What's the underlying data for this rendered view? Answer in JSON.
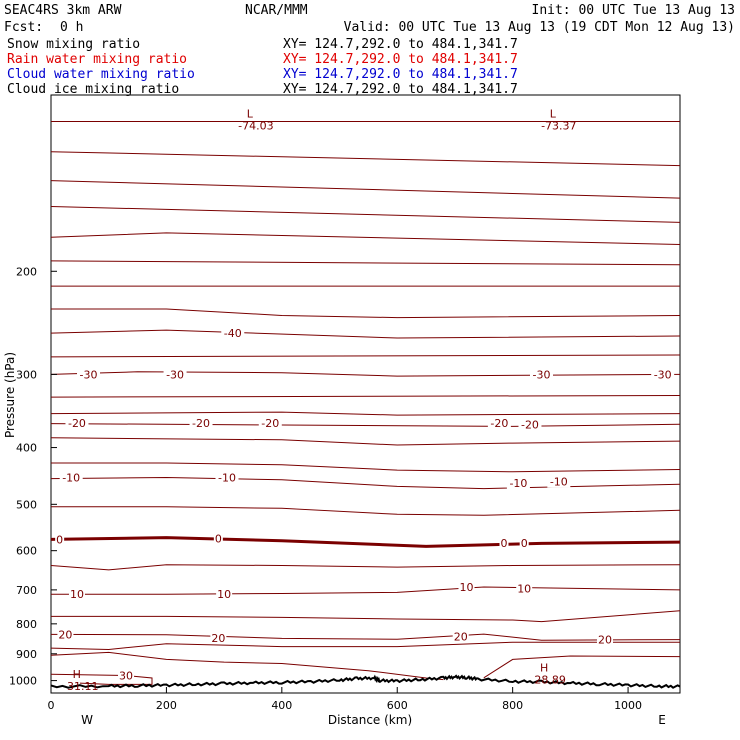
{
  "header": {
    "model": "SEAC4RS  3km ARW",
    "center": "NCAR/MMM",
    "init": "Init: 00 UTC Tue 13 Aug 13",
    "fcst_label": "Fcst:",
    "fcst_value": "0 h",
    "valid": "Valid: 00 UTC Tue 13 Aug 13 (19 CDT Mon 12 Aug 13)",
    "fields": [
      {
        "name": "Snow mixing ratio",
        "xy": "XY= 124.7,292.0 to 484.1,341.7",
        "color": "#000000"
      },
      {
        "name": "Rain water mixing ratio",
        "xy": "XY= 124.7,292.0 to 484.1,341.7",
        "color": "#e00000"
      },
      {
        "name": "Cloud water mixing ratio",
        "xy": "XY= 124.7,292.0 to 484.1,341.7",
        "color": "#0000d0"
      },
      {
        "name": "Cloud ice mixing ratio",
        "xy": "XY= 124.7,292.0 to 484.1,341.7",
        "color": "#000000"
      }
    ]
  },
  "chart_data": {
    "type": "line",
    "xlabel": "Distance (km)",
    "ylabel": "Pressure (hPa)",
    "xlim": [
      0,
      1090
    ],
    "ylim": [
      1050,
      100
    ],
    "y_scale": "log",
    "x_ticks": [
      0,
      200,
      400,
      600,
      800,
      1000
    ],
    "y_ticks": [
      200,
      300,
      400,
      500,
      600,
      700,
      800,
      900,
      1000
    ],
    "side_labels": {
      "left": "W",
      "right": "E"
    },
    "contour_color": "#7a0000",
    "contours": [
      {
        "x": [
          0,
          1090
        ],
        "p": [
          111,
          111
        ],
        "width": 1
      },
      {
        "x": [
          0,
          1090
        ],
        "p": [
          125,
          132
        ],
        "width": 1
      },
      {
        "x": [
          0,
          1090
        ],
        "p": [
          140,
          150
        ],
        "width": 1
      },
      {
        "x": [
          0,
          1090
        ],
        "p": [
          155,
          165
        ],
        "width": 1
      },
      {
        "x": [
          0,
          200,
          1090
        ],
        "p": [
          175,
          172,
          180
        ],
        "width": 1
      },
      {
        "x": [
          0,
          1090
        ],
        "p": [
          192,
          195
        ],
        "width": 1
      },
      {
        "x": [
          0,
          1090
        ],
        "p": [
          212,
          212
        ],
        "width": 1
      },
      {
        "x": [
          0,
          200,
          400,
          600,
          1090
        ],
        "p": [
          232,
          232,
          238,
          240,
          238
        ],
        "width": 1
      },
      {
        "x": [
          0,
          200,
          600,
          1090
        ],
        "p": [
          255,
          252,
          260,
          258
        ],
        "width": 1
      },
      {
        "x": [
          0,
          1090
        ],
        "p": [
          280,
          278
        ],
        "width": 1
      },
      {
        "x": [
          0,
          150,
          400,
          600,
          1090
        ],
        "p": [
          300,
          297,
          298,
          302,
          300
        ],
        "width": 1
      },
      {
        "x": [
          0,
          1090
        ],
        "p": [
          328,
          326
        ],
        "width": 1
      },
      {
        "x": [
          0,
          400,
          600,
          1090
        ],
        "p": [
          350,
          348,
          352,
          350
        ],
        "width": 1
      },
      {
        "x": [
          0,
          400,
          800,
          1090
        ],
        "p": [
          364,
          366,
          368,
          365
        ],
        "width": 1
      },
      {
        "x": [
          0,
          400,
          600,
          800,
          1090
        ],
        "p": [
          385,
          388,
          396,
          393,
          390
        ],
        "width": 1
      },
      {
        "x": [
          0,
          200,
          400,
          600,
          800,
          1090
        ],
        "p": [
          425,
          425,
          428,
          437,
          440,
          436
        ],
        "width": 1
      },
      {
        "x": [
          0,
          200,
          400,
          600,
          750,
          1090
        ],
        "p": [
          452,
          450,
          454,
          466,
          470,
          462
        ],
        "width": 1
      },
      {
        "x": [
          0,
          200,
          400,
          600,
          750,
          1090
        ],
        "p": [
          505,
          505,
          508,
          520,
          522,
          512
        ],
        "width": 1
      },
      {
        "x": [
          0,
          200,
          400,
          650,
          850,
          1090
        ],
        "p": [
          574,
          570,
          577,
          590,
          583,
          580
        ],
        "width": 3
      },
      {
        "x": [
          0,
          100,
          200,
          400,
          600,
          800,
          1090
        ],
        "p": [
          636,
          647,
          634,
          636,
          640,
          636,
          634
        ],
        "width": 1
      },
      {
        "x": [
          0,
          200,
          400,
          600,
          750,
          1090
        ],
        "p": [
          712,
          712,
          710,
          707,
          692,
          700
        ],
        "width": 1
      },
      {
        "x": [
          0,
          200,
          400,
          600,
          800,
          850,
          1090
        ],
        "p": [
          777,
          777,
          780,
          785,
          788,
          793,
          760
        ],
        "width": 1
      },
      {
        "x": [
          0,
          200,
          400,
          600,
          750,
          850,
          1090
        ],
        "p": [
          834,
          835,
          847,
          850,
          833,
          853,
          851
        ],
        "width": 1
      },
      {
        "x": [
          0,
          100,
          200,
          400,
          600,
          800,
          1090
        ],
        "p": [
          880,
          885,
          865,
          875,
          875,
          860,
          860
        ],
        "width": 1
      },
      {
        "x": [
          0,
          100,
          200,
          300,
          400,
          550,
          650,
          680
        ],
        "p": [
          905,
          895,
          920,
          930,
          935,
          962,
          990,
          996
        ],
        "width": 1
      },
      {
        "x": [
          750,
          800,
          900,
          1090
        ],
        "p": [
          989,
          920,
          908,
          910
        ],
        "width": 1
      },
      {
        "x": [
          0,
          130,
          175,
          175,
          100,
          50
        ],
        "p": [
          975,
          980,
          990,
          1015,
          1015,
          1010
        ],
        "width": 1
      }
    ],
    "terrain": {
      "x": [
        0,
        100,
        150,
        200,
        250,
        300,
        350,
        400,
        450,
        500,
        530,
        560,
        570,
        600,
        640,
        680,
        700,
        720,
        740,
        800,
        850,
        900,
        950,
        1000,
        1050,
        1090
      ],
      "p": [
        1024,
        1022,
        1020,
        1018,
        1015,
        1012,
        1009,
        1007,
        1004,
        998,
        992,
        990,
        1000,
        1001,
        996,
        990,
        986,
        988,
        994,
        1003,
        1005,
        1010,
        1014,
        1018,
        1022,
        1024
      ]
    },
    "labels": [
      {
        "text": "-30",
        "x": 65,
        "p": 300
      },
      {
        "text": "-30",
        "x": 215,
        "p": 300
      },
      {
        "text": "-30",
        "x": 850,
        "p": 300
      },
      {
        "text": "-30",
        "x": 1060,
        "p": 300
      },
      {
        "text": "-40",
        "x": 315,
        "p": 255
      },
      {
        "text": "-20",
        "x": 45,
        "p": 363
      },
      {
        "text": "-20",
        "x": 260,
        "p": 363
      },
      {
        "text": "-20",
        "x": 380,
        "p": 363
      },
      {
        "text": "-20",
        "x": 777,
        "p": 363
      },
      {
        "text": "-20",
        "x": 830,
        "p": 365
      },
      {
        "text": "-10",
        "x": 35,
        "p": 450
      },
      {
        "text": "-10",
        "x": 305,
        "p": 450
      },
      {
        "text": "-10",
        "x": 810,
        "p": 460
      },
      {
        "text": "-10",
        "x": 880,
        "p": 457
      },
      {
        "text": "0",
        "x": 15,
        "p": 574
      },
      {
        "text": "0",
        "x": 290,
        "p": 572
      },
      {
        "text": "0",
        "x": 785,
        "p": 582
      },
      {
        "text": "0",
        "x": 820,
        "p": 582
      },
      {
        "text": "10",
        "x": 45,
        "p": 712
      },
      {
        "text": "10",
        "x": 300,
        "p": 712
      },
      {
        "text": "10",
        "x": 720,
        "p": 692
      },
      {
        "text": "10",
        "x": 820,
        "p": 696
      },
      {
        "text": "20",
        "x": 25,
        "p": 834
      },
      {
        "text": "20",
        "x": 290,
        "p": 845
      },
      {
        "text": "20",
        "x": 710,
        "p": 840
      },
      {
        "text": "20",
        "x": 960,
        "p": 851
      },
      {
        "text": "30",
        "x": 130,
        "p": 980
      }
    ],
    "extrema": [
      {
        "kind": "L",
        "value": "-74.03",
        "x": 355,
        "p": 111
      },
      {
        "kind": "L",
        "value": "-73.37",
        "x": 880,
        "p": 111
      },
      {
        "kind": "H",
        "value": "28.89",
        "x": 865,
        "p": 980
      },
      {
        "kind": "H",
        "value": "31.11",
        "x": 55,
        "p": 1005
      }
    ]
  }
}
